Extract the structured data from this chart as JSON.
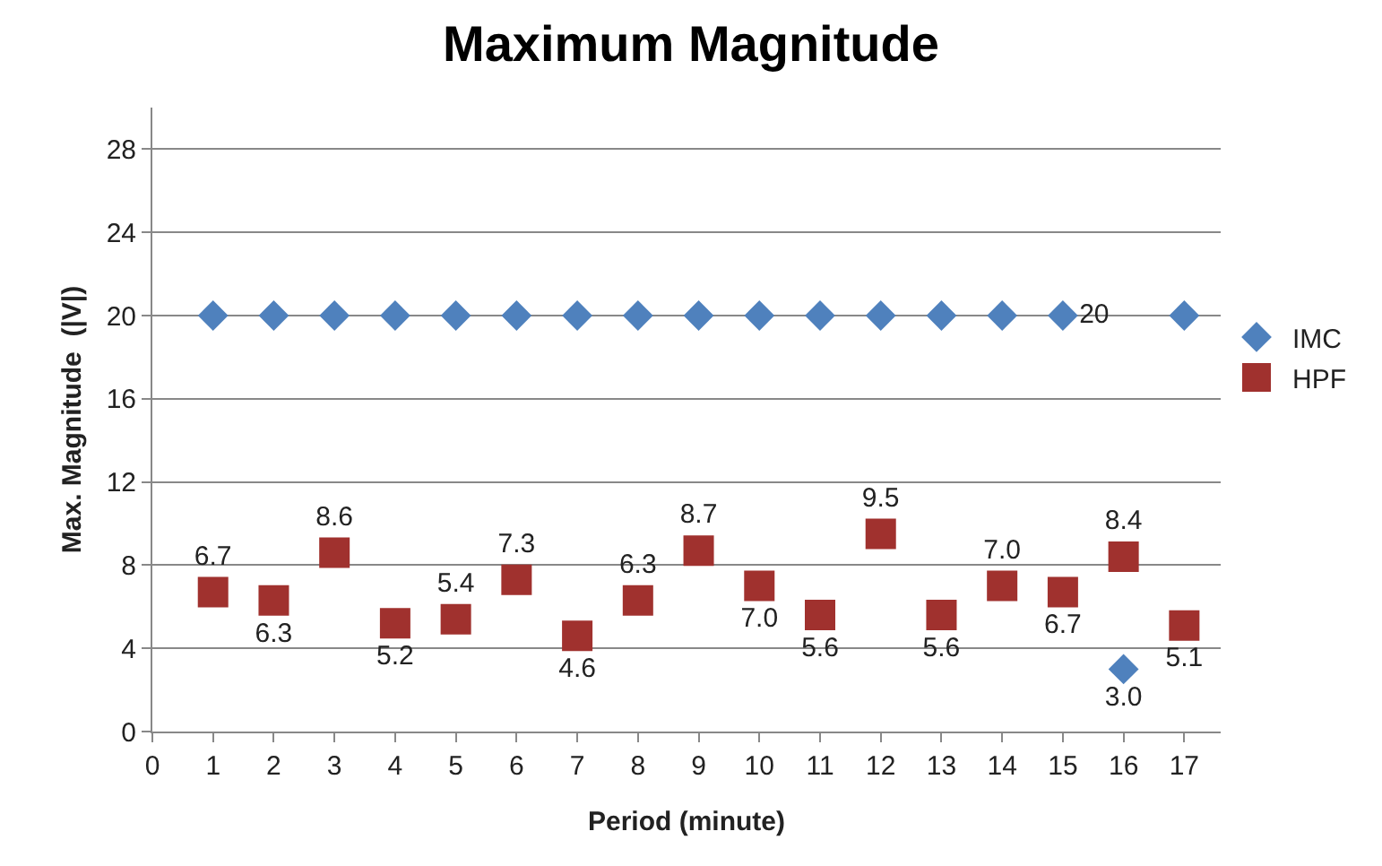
{
  "chart_data": {
    "type": "scatter",
    "title": "Maximum Magnitude",
    "xlabel": "Period (minute)",
    "ylabel": "Max. Magnitude  (|V|)",
    "x": [
      1,
      2,
      3,
      4,
      5,
      6,
      7,
      8,
      9,
      10,
      11,
      12,
      13,
      14,
      15,
      16,
      17
    ],
    "series": [
      {
        "name": "IMC",
        "color": "#4f81bd",
        "marker": "diamond",
        "values": [
          20,
          20,
          20,
          20,
          20,
          20,
          20,
          20,
          20,
          20,
          20,
          20,
          20,
          20,
          20,
          3.0,
          20
        ],
        "value_labels": [
          null,
          null,
          null,
          null,
          null,
          null,
          null,
          null,
          null,
          null,
          null,
          null,
          null,
          null,
          "20",
          "3.0",
          null
        ]
      },
      {
        "name": "HPF",
        "color": "#a0312e",
        "marker": "square",
        "values": [
          6.7,
          6.3,
          8.6,
          5.2,
          5.4,
          7.3,
          4.6,
          6.3,
          8.7,
          7.0,
          5.6,
          9.5,
          5.6,
          7.0,
          6.7,
          8.4,
          5.1
        ],
        "value_labels": [
          "6.7",
          "6.3",
          "8.6",
          "5.2",
          "5.4",
          "7.3",
          "4.6",
          "6.3",
          "8.7",
          "7.0",
          "5.6",
          "9.5",
          "5.6",
          "7.0",
          "6.7",
          "8.4",
          "5.1"
        ]
      }
    ],
    "xlim": [
      0,
      17.6
    ],
    "xticks": [
      0,
      1,
      2,
      3,
      4,
      5,
      6,
      7,
      8,
      9,
      10,
      11,
      12,
      13,
      14,
      15,
      16,
      17
    ],
    "ylim": [
      0,
      30
    ],
    "yticks": [
      0,
      4,
      8,
      12,
      16,
      20,
      24,
      28
    ],
    "grid": "y",
    "legend": "right"
  }
}
